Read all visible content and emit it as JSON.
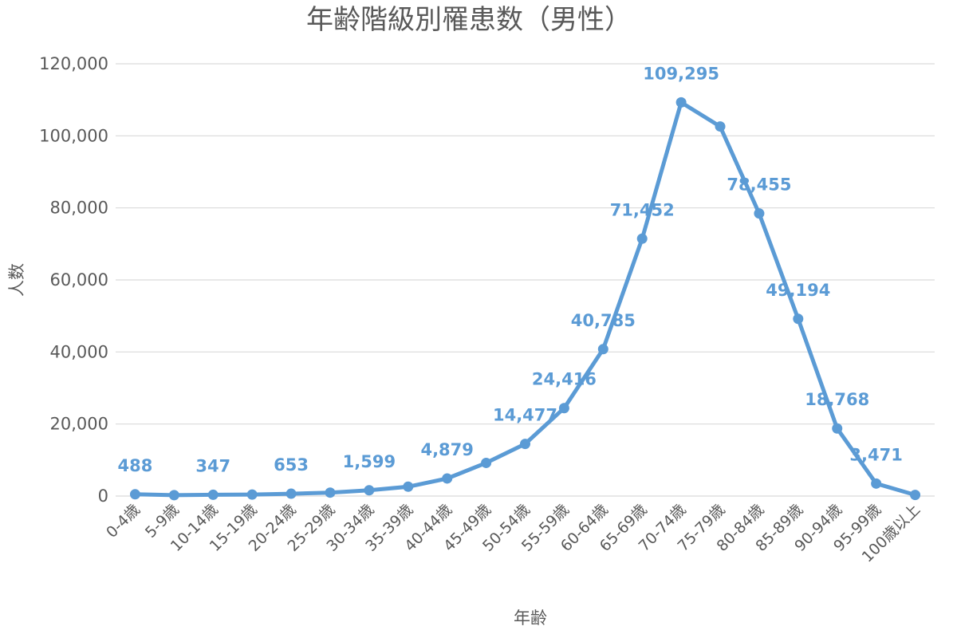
{
  "chart_data": {
    "type": "line",
    "title": "年齢階級別罹患数（男性）",
    "xlabel": "年齢",
    "ylabel": "人数",
    "categories": [
      "0-4歳",
      "5-9歳",
      "10-14歳",
      "15-19歳",
      "20-24歳",
      "25-29歳",
      "30-34歳",
      "35-39歳",
      "40-44歳",
      "45-49歳",
      "50-54歳",
      "55-59歳",
      "60-64歳",
      "65-69歳",
      "70-74歳",
      "75-79歳",
      "80-84歳",
      "85-89歳",
      "90-94歳",
      "95-99歳",
      "100歳以上"
    ],
    "series": [
      {
        "values": [
          488,
          250,
          347,
          420,
          653,
          950,
          1599,
          2600,
          4879,
          9200,
          14477,
          24416,
          40785,
          71452,
          109295,
          102600,
          78455,
          49194,
          18768,
          3471,
          300
        ]
      }
    ],
    "data_labels": [
      "488",
      "",
      "347",
      "",
      "653",
      "",
      "1,599",
      "",
      "4,879",
      "",
      "14,477",
      "24,416",
      "40,785",
      "71,452",
      "109,295",
      "",
      "78,455",
      "49,194",
      "18,768",
      "3,471",
      ""
    ],
    "y_ticks": [
      "0",
      "20,000",
      "40,000",
      "60,000",
      "80,000",
      "100,000",
      "120,000"
    ],
    "ylim": [
      0,
      120000
    ],
    "grid": true,
    "legend": "none",
    "colors": {
      "series": "#5B9BD5",
      "grid": "#D9D9D9",
      "text": "#595959"
    }
  }
}
